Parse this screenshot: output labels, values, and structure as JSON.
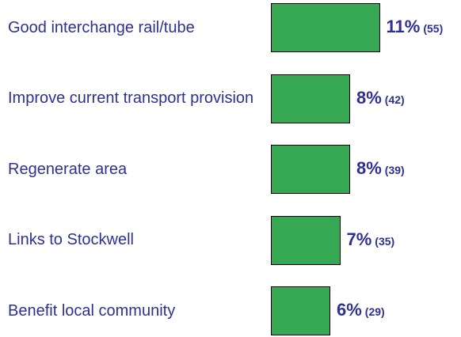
{
  "chart_data": {
    "type": "bar",
    "orientation": "horizontal",
    "categories": [
      "Good interchange rail/tube",
      "Improve current transport provision",
      "Regenerate area",
      "Links to Stockwell",
      "Benefit local community"
    ],
    "values": [
      11,
      8,
      8,
      7,
      6
    ],
    "value_labels": [
      "11%",
      "8%",
      "8%",
      "7%",
      "6%"
    ],
    "count_labels": [
      "(55)",
      "(42)",
      "(39)",
      "(35)",
      "(29)"
    ],
    "color": "#36a853"
  }
}
